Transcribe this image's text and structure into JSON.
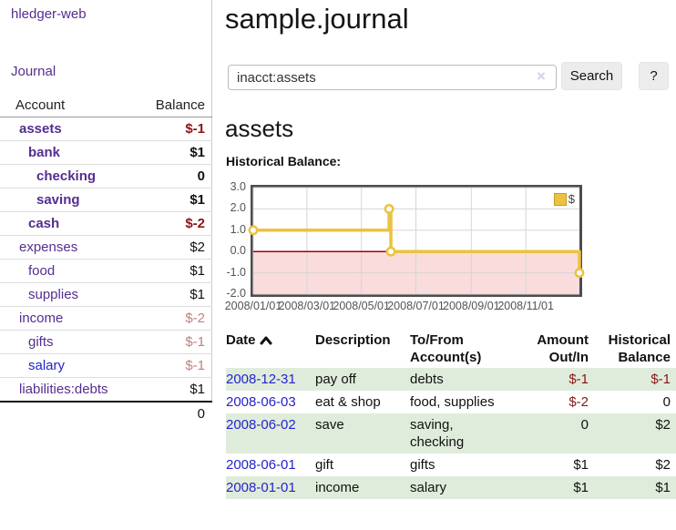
{
  "brand": "hledger-web",
  "nav": {
    "journal": "Journal"
  },
  "sidebar": {
    "header": {
      "account": "Account",
      "balance": "Balance"
    },
    "accounts": [
      {
        "name": "assets",
        "balance": "$-1",
        "depth": 1,
        "bold": true,
        "name_style": "purple",
        "balance_style": "negative-strong"
      },
      {
        "name": "bank",
        "balance": "$1",
        "depth": 2,
        "bold": true,
        "name_style": "purple",
        "balance_style": "normal"
      },
      {
        "name": "checking",
        "balance": "0",
        "depth": 3,
        "bold": true,
        "name_style": "purple",
        "balance_style": "normal"
      },
      {
        "name": "saving",
        "balance": "$1",
        "depth": 3,
        "bold": true,
        "name_style": "purple",
        "balance_style": "normal"
      },
      {
        "name": "cash",
        "balance": "$-2",
        "depth": 2,
        "bold": true,
        "name_style": "purple",
        "balance_style": "negative-strong"
      },
      {
        "name": "expenses",
        "balance": "$2",
        "depth": 1,
        "bold": false,
        "name_style": "purple",
        "balance_style": "normal"
      },
      {
        "name": "food",
        "balance": "$1",
        "depth": 2,
        "bold": false,
        "name_style": "purple",
        "balance_style": "normal"
      },
      {
        "name": "supplies",
        "balance": "$1",
        "depth": 2,
        "bold": false,
        "name_style": "purple",
        "balance_style": "normal"
      },
      {
        "name": "income",
        "balance": "$-2",
        "depth": 1,
        "bold": false,
        "name_style": "purple",
        "balance_style": "negative-soft"
      },
      {
        "name": "gifts",
        "balance": "$-1",
        "depth": 2,
        "bold": false,
        "name_style": "purple",
        "balance_style": "negative-soft"
      },
      {
        "name": "salary",
        "balance": "$-1",
        "depth": 2,
        "bold": false,
        "name_style": "blue",
        "balance_style": "negative-soft"
      },
      {
        "name": "liabilities:debts",
        "balance": "$1",
        "depth": 1,
        "bold": false,
        "name_style": "purple",
        "balance_style": "normal"
      }
    ],
    "total": "0"
  },
  "main": {
    "title": "sample.journal",
    "search": {
      "value": "inacct:assets",
      "clear": "×",
      "search_button": "Search",
      "help_button": "?"
    },
    "account_heading": "assets",
    "chart_title": "Historical Balance:"
  },
  "chart_data": {
    "type": "line",
    "title": "Historical Balance",
    "legend_position": "top-right",
    "grid": true,
    "x_range": [
      "2008-01-01",
      "2008-12-31"
    ],
    "ylim": [
      -2,
      3
    ],
    "x_ticks": [
      {
        "date": "2008-01-01",
        "label": "2008/01/01"
      },
      {
        "date": "2008-03-01",
        "label": "2008/03/01"
      },
      {
        "date": "2008-05-01",
        "label": "2008/05/01"
      },
      {
        "date": "2008-07-01",
        "label": "2008/07/01"
      },
      {
        "date": "2008-09-01",
        "label": "2008/09/01"
      },
      {
        "date": "2008-11-01",
        "label": "2008/11/01"
      }
    ],
    "y_ticks": [
      {
        "value": 3,
        "label": "3.0"
      },
      {
        "value": 2,
        "label": "2.0"
      },
      {
        "value": 1,
        "label": "1.0"
      },
      {
        "value": 0,
        "label": "0.0"
      },
      {
        "value": -1,
        "label": "-1.0"
      },
      {
        "value": -2,
        "label": "-2.0"
      }
    ],
    "series": [
      {
        "name": "$",
        "color": "#edc240",
        "step": true,
        "marker": "circle",
        "points": [
          {
            "date": "2008-01-01",
            "value": 1
          },
          {
            "date": "2008-06-01",
            "value": 2
          },
          {
            "date": "2008-06-03",
            "value": 0
          },
          {
            "date": "2008-12-31",
            "value": -1
          }
        ]
      }
    ],
    "negative_fill": "#fbdcdc",
    "zero_line_color": "#a40000",
    "grid_color": "#d6d6d6",
    "border_color": "#4d4d4d"
  },
  "register": {
    "columns": [
      {
        "label": "Date",
        "sorted": "asc"
      },
      {
        "label": "Description"
      },
      {
        "label": "To/From Account(s)"
      },
      {
        "label": "Amount Out/In"
      },
      {
        "label": "Historical Balance"
      }
    ],
    "rows": [
      {
        "date": "2008-12-31",
        "description": "pay off",
        "accounts": "debts",
        "amount": "$-1",
        "amount_negative": true,
        "balance": "$-1",
        "balance_negative": true
      },
      {
        "date": "2008-06-03",
        "description": "eat & shop",
        "accounts": "food, supplies",
        "amount": "$-2",
        "amount_negative": true,
        "balance": "0",
        "balance_negative": false
      },
      {
        "date": "2008-06-02",
        "description": "save",
        "accounts": "saving, checking",
        "amount": "0",
        "amount_negative": false,
        "balance": "$2",
        "balance_negative": false
      },
      {
        "date": "2008-06-01",
        "description": "gift",
        "accounts": "gifts",
        "amount": "$1",
        "amount_negative": false,
        "balance": "$2",
        "balance_negative": false
      },
      {
        "date": "2008-01-01",
        "description": "income",
        "accounts": "salary",
        "amount": "$1",
        "amount_negative": false,
        "balance": "$1",
        "balance_negative": false
      }
    ]
  }
}
